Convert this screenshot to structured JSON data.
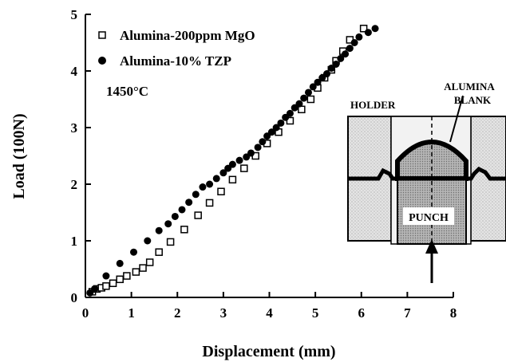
{
  "chart_data": {
    "type": "scatter",
    "title": "",
    "xlabel": "Displacement (mm)",
    "ylabel": "Load (100N)",
    "xlim": [
      0,
      8
    ],
    "ylim": [
      0,
      5
    ],
    "xticks": [
      "0",
      "1",
      "2",
      "3",
      "4",
      "5",
      "6",
      "7",
      "8"
    ],
    "yticks": [
      "0",
      "1",
      "2",
      "3",
      "4",
      "5"
    ],
    "grid": false,
    "legend_position": "top-left",
    "annotation": "1450°C",
    "series": [
      {
        "name": "Alumina-200ppm MgO",
        "marker": "open-square",
        "color": "#000000",
        "points": [
          [
            0.15,
            0.1
          ],
          [
            0.25,
            0.15
          ],
          [
            0.35,
            0.17
          ],
          [
            0.45,
            0.2
          ],
          [
            0.6,
            0.25
          ],
          [
            0.75,
            0.32
          ],
          [
            0.9,
            0.38
          ],
          [
            1.1,
            0.45
          ],
          [
            1.25,
            0.52
          ],
          [
            1.4,
            0.62
          ],
          [
            1.6,
            0.8
          ],
          [
            1.85,
            0.98
          ],
          [
            2.15,
            1.2
          ],
          [
            2.45,
            1.45
          ],
          [
            2.7,
            1.67
          ],
          [
            2.95,
            1.87
          ],
          [
            3.2,
            2.08
          ],
          [
            3.45,
            2.28
          ],
          [
            3.7,
            2.5
          ],
          [
            3.95,
            2.72
          ],
          [
            4.2,
            2.92
          ],
          [
            4.45,
            3.12
          ],
          [
            4.7,
            3.32
          ],
          [
            4.9,
            3.5
          ],
          [
            5.05,
            3.7
          ],
          [
            5.2,
            3.88
          ],
          [
            5.35,
            4.02
          ],
          [
            5.45,
            4.18
          ],
          [
            5.6,
            4.35
          ],
          [
            5.75,
            4.55
          ],
          [
            6.05,
            4.75
          ]
        ]
      },
      {
        "name": "Alumina-10% TZP",
        "marker": "filled-circle",
        "color": "#000000",
        "points": [
          [
            0.1,
            0.08
          ],
          [
            0.2,
            0.15
          ],
          [
            0.45,
            0.38
          ],
          [
            0.75,
            0.6
          ],
          [
            1.05,
            0.8
          ],
          [
            1.35,
            1.0
          ],
          [
            1.6,
            1.18
          ],
          [
            1.8,
            1.3
          ],
          [
            1.95,
            1.43
          ],
          [
            2.1,
            1.55
          ],
          [
            2.25,
            1.68
          ],
          [
            2.4,
            1.82
          ],
          [
            2.55,
            1.95
          ],
          [
            2.7,
            2.0
          ],
          [
            2.85,
            2.1
          ],
          [
            3.0,
            2.2
          ],
          [
            3.1,
            2.28
          ],
          [
            3.2,
            2.35
          ],
          [
            3.35,
            2.42
          ],
          [
            3.5,
            2.48
          ],
          [
            3.6,
            2.55
          ],
          [
            3.75,
            2.65
          ],
          [
            3.85,
            2.75
          ],
          [
            3.95,
            2.85
          ],
          [
            4.05,
            2.92
          ],
          [
            4.15,
            3.0
          ],
          [
            4.25,
            3.08
          ],
          [
            4.35,
            3.18
          ],
          [
            4.45,
            3.25
          ],
          [
            4.55,
            3.35
          ],
          [
            4.65,
            3.42
          ],
          [
            4.75,
            3.52
          ],
          [
            4.85,
            3.62
          ],
          [
            4.95,
            3.72
          ],
          [
            5.05,
            3.8
          ],
          [
            5.15,
            3.88
          ],
          [
            5.25,
            3.95
          ],
          [
            5.35,
            4.05
          ],
          [
            5.45,
            4.12
          ],
          [
            5.55,
            4.22
          ],
          [
            5.65,
            4.3
          ],
          [
            5.75,
            4.4
          ],
          [
            5.85,
            4.5
          ],
          [
            5.95,
            4.6
          ],
          [
            6.15,
            4.68
          ],
          [
            6.3,
            4.75
          ]
        ]
      }
    ]
  },
  "inset": {
    "holder_label": "HOLDER",
    "blank_label_line1": "ALUMINA",
    "blank_label_line2": "BLANK",
    "punch_label": "PUNCH"
  }
}
